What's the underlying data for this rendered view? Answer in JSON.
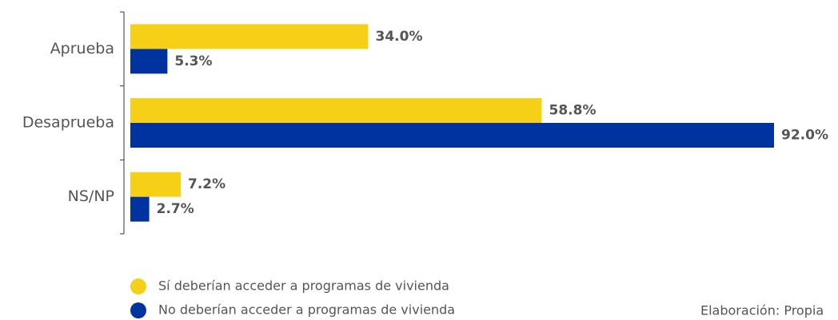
{
  "chart_data": {
    "type": "hbar",
    "categories": [
      "Aprueba",
      "Desaprueba",
      "NS/NP"
    ],
    "series": [
      {
        "name": "Sí deberían acceder a programas de vivienda",
        "color": "#f5d016",
        "values": [
          34.0,
          58.8,
          7.2
        ],
        "value_labels": [
          "34.0%",
          "58.8%",
          "7.2%"
        ]
      },
      {
        "name": "No deberían acceder a programas de vivienda",
        "color": "#0033a0",
        "values": [
          5.3,
          92.0,
          2.7
        ],
        "value_labels": [
          "5.3%",
          "92.0%",
          "2.7%"
        ]
      }
    ],
    "xlim": [
      0,
      100
    ],
    "legend": "bottom",
    "source": "Elaboración: Propia"
  }
}
